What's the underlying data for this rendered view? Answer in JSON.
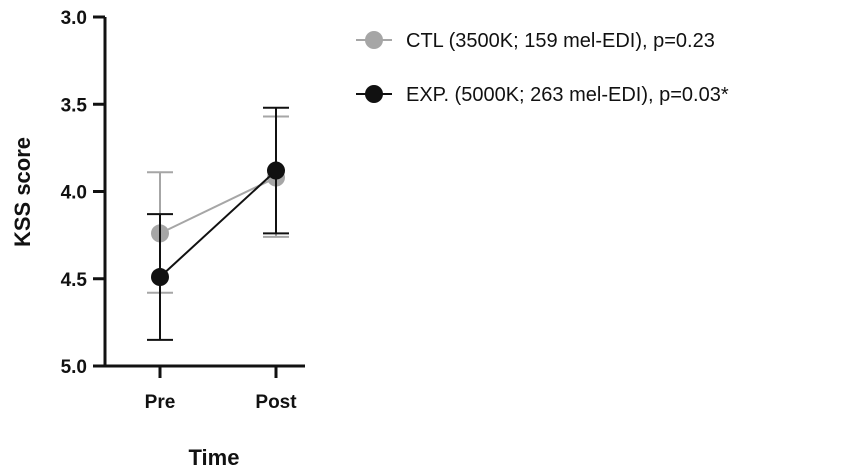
{
  "chart_data": {
    "type": "line",
    "title": "",
    "xlabel": "Time",
    "ylabel": "KSS score",
    "categories": [
      "Pre",
      "Post"
    ],
    "y_ticks": [
      "3.0",
      "3.5",
      "4.0",
      "4.5",
      "5.0"
    ],
    "ylim": [
      3.0,
      5.0
    ],
    "y_inverted": true,
    "grid": false,
    "legend_position": "top-right",
    "series": [
      {
        "name": "CTL (3500K; 159 mel-EDI), p=0.23",
        "color": "#a6a6a6",
        "values": [
          4.24,
          3.92
        ],
        "err_low": [
          4.58,
          4.26
        ],
        "err_high": [
          3.89,
          3.57
        ]
      },
      {
        "name": "EXP. (5000K; 263 mel-EDI), p=0.03*",
        "color": "#111111",
        "values": [
          4.49,
          3.88
        ],
        "err_low": [
          4.85,
          4.24
        ],
        "err_high": [
          4.13,
          3.52
        ]
      }
    ]
  }
}
